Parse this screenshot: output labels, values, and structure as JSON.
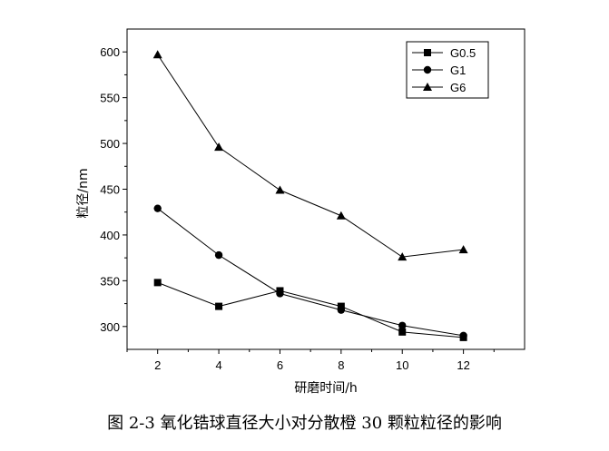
{
  "caption": "图 2-3  氧化锆球直径大小对分散橙 30 颗粒粒径的影响",
  "chart_data": {
    "type": "line",
    "xlabel": "研磨时间/h",
    "ylabel": "粒径/nm",
    "x": [
      2,
      4,
      6,
      8,
      10,
      12
    ],
    "xlim": [
      1,
      14
    ],
    "ylim": [
      275,
      625
    ],
    "xticks": [
      2,
      4,
      6,
      8,
      10,
      12
    ],
    "yticks": [
      300,
      350,
      400,
      450,
      500,
      550,
      600
    ],
    "grid": false,
    "legend_position": "top-right",
    "series": [
      {
        "name": "G0.5",
        "marker": "square",
        "values": [
          348,
          322,
          339,
          322,
          294,
          288
        ]
      },
      {
        "name": "G1",
        "marker": "circle",
        "values": [
          429,
          378,
          336,
          318,
          301,
          290
        ]
      },
      {
        "name": "G6",
        "marker": "triangle",
        "values": [
          597,
          496,
          449,
          421,
          376,
          384
        ]
      }
    ]
  }
}
